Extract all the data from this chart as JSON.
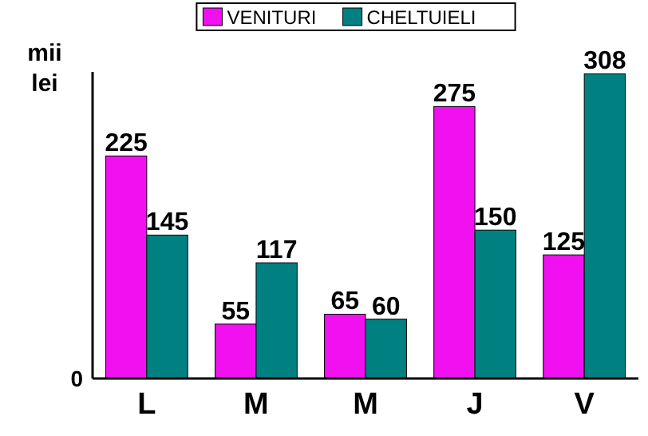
{
  "chart_data": {
    "type": "bar",
    "ylabel": "mii\nlei",
    "categories": [
      "L",
      "M",
      "M",
      "J",
      "V"
    ],
    "series": [
      {
        "name": "VENITURI",
        "color": "#f010f0",
        "values": [
          225,
          55,
          65,
          275,
          125
        ]
      },
      {
        "name": "CHELTUIELI",
        "color": "#008080",
        "values": [
          145,
          117,
          60,
          150,
          308
        ]
      }
    ],
    "ylim": [
      0,
      310
    ],
    "annotations": [
      "0"
    ],
    "data_labels": true,
    "legend": "top"
  }
}
